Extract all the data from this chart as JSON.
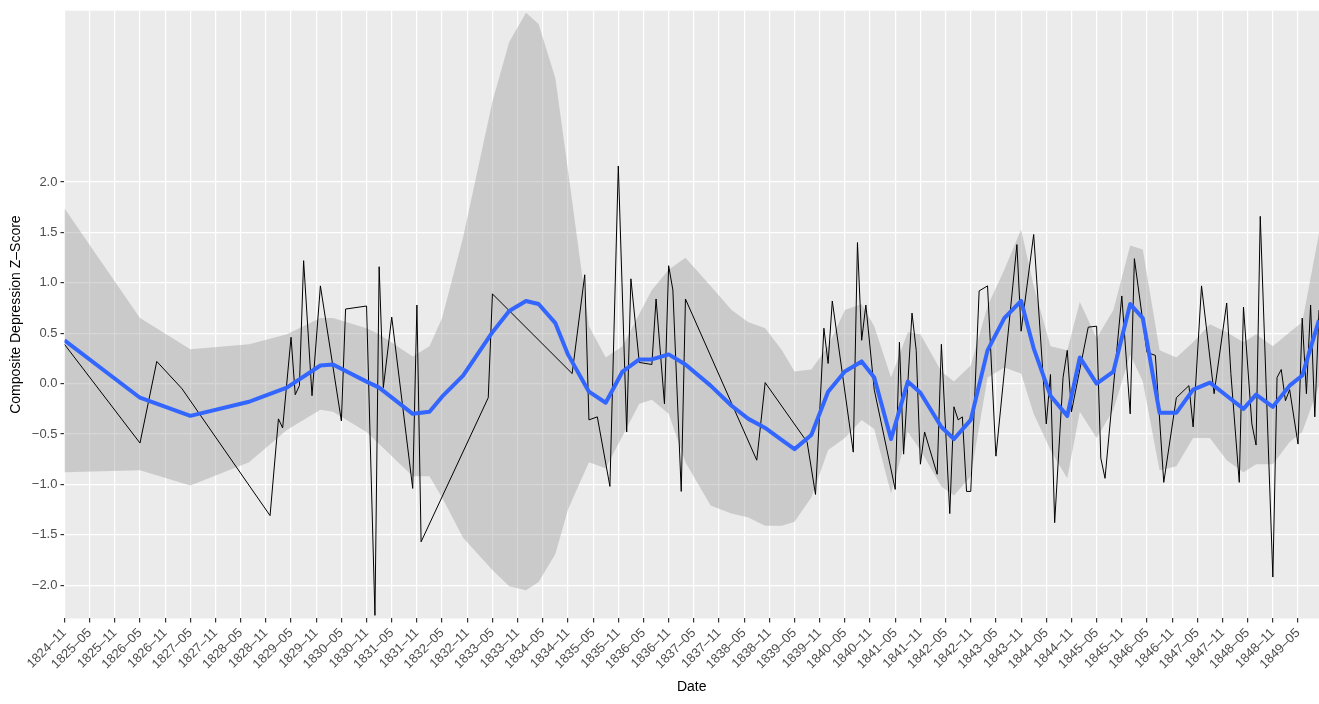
{
  "chart_data": {
    "type": "line",
    "xlabel": "Date",
    "ylabel": "Composite Depression Z–Score",
    "xlim": [
      "1824-11",
      "1849-10"
    ],
    "ylim": [
      -2.33,
      3.7
    ],
    "xticks": [
      {
        "value": "1824-11",
        "label": "1824–11"
      },
      {
        "value": "1825-05",
        "label": "1825–05"
      },
      {
        "value": "1825-11",
        "label": "1825–11"
      },
      {
        "value": "1826-05",
        "label": "1826–05"
      },
      {
        "value": "1826-11",
        "label": "1826–11"
      },
      {
        "value": "1827-05",
        "label": "1827–05"
      },
      {
        "value": "1827-11",
        "label": "1827–11"
      },
      {
        "value": "1828-05",
        "label": "1828–05"
      },
      {
        "value": "1828-11",
        "label": "1828–11"
      },
      {
        "value": "1829-05",
        "label": "1829–05"
      },
      {
        "value": "1829-11",
        "label": "1829–11"
      },
      {
        "value": "1830-05",
        "label": "1830–05"
      },
      {
        "value": "1830-11",
        "label": "1830–11"
      },
      {
        "value": "1831-05",
        "label": "1831–05"
      },
      {
        "value": "1831-11",
        "label": "1831–11"
      },
      {
        "value": "1832-05",
        "label": "1832–05"
      },
      {
        "value": "1832-11",
        "label": "1832–11"
      },
      {
        "value": "1833-05",
        "label": "1833–05"
      },
      {
        "value": "1833-11",
        "label": "1833–11"
      },
      {
        "value": "1834-05",
        "label": "1834–05"
      },
      {
        "value": "1834-11",
        "label": "1834–11"
      },
      {
        "value": "1835-05",
        "label": "1835–05"
      },
      {
        "value": "1835-11",
        "label": "1835–11"
      },
      {
        "value": "1836-05",
        "label": "1836–05"
      },
      {
        "value": "1836-11",
        "label": "1836–11"
      },
      {
        "value": "1837-05",
        "label": "1837–05"
      },
      {
        "value": "1837-11",
        "label": "1837–11"
      },
      {
        "value": "1838-05",
        "label": "1838–05"
      },
      {
        "value": "1838-11",
        "label": "1838–11"
      },
      {
        "value": "1839-05",
        "label": "1839–05"
      },
      {
        "value": "1839-11",
        "label": "1839–11"
      },
      {
        "value": "1840-05",
        "label": "1840–05"
      },
      {
        "value": "1840-11",
        "label": "1840–11"
      },
      {
        "value": "1841-05",
        "label": "1841–05"
      },
      {
        "value": "1841-11",
        "label": "1841–11"
      },
      {
        "value": "1842-05",
        "label": "1842–05"
      },
      {
        "value": "1842-11",
        "label": "1842–11"
      },
      {
        "value": "1843-05",
        "label": "1843–05"
      },
      {
        "value": "1843-11",
        "label": "1843–11"
      },
      {
        "value": "1844-05",
        "label": "1844–05"
      },
      {
        "value": "1844-11",
        "label": "1844–11"
      },
      {
        "value": "1845-05",
        "label": "1845–05"
      },
      {
        "value": "1845-11",
        "label": "1845–11"
      },
      {
        "value": "1846-05",
        "label": "1846–05"
      },
      {
        "value": "1846-11",
        "label": "1846–11"
      },
      {
        "value": "1847-05",
        "label": "1847–05"
      },
      {
        "value": "1847-11",
        "label": "1847–11"
      },
      {
        "value": "1848-05",
        "label": "1848–05"
      },
      {
        "value": "1848-11",
        "label": "1848–11"
      },
      {
        "value": "1849-05",
        "label": "1849–05"
      }
    ],
    "yticks": [
      {
        "value": -2,
        "label": "−2.0"
      },
      {
        "value": -1.5,
        "label": "−1.5"
      },
      {
        "value": -1,
        "label": "−1.0"
      },
      {
        "value": -0.5,
        "label": "−0.5"
      },
      {
        "value": 0,
        "label": "0.0"
      },
      0.5,
      {
        "value": 1,
        "label": "1.0"
      },
      1.5,
      {
        "value": 2,
        "label": "2.0"
      }
    ],
    "grid": true,
    "legend": false,
    "marker": "none",
    "series": [
      {
        "color": "#000000",
        "x": [
          "1824-11",
          "1826-05",
          "1826-09",
          "1827-03",
          "1828-12",
          "1829-02",
          "1829-03",
          "1829-05",
          "1829-06",
          "1829-07",
          "1829-08",
          "1829-10",
          "1829-12",
          "1830-05",
          "1830-06",
          "1830-11",
          "1831-01",
          "1831-02",
          "1831-03",
          "1831-05",
          "1831-10",
          "1831-11",
          "1831-12",
          "1833-04",
          "1833-05",
          "1834-12",
          "1835-03",
          "1835-04",
          "1835-06",
          "1835-09",
          "1835-11",
          "1836-01",
          "1836-02",
          "1836-04",
          "1836-07",
          "1836-08",
          "1836-10",
          "1836-11",
          "1836-12",
          "1837-02",
          "1837-03",
          "1838-08",
          "1838-10",
          "1839-08",
          "1839-10",
          "1839-12",
          "1840-01",
          "1840-02",
          "1840-07",
          "1840-08",
          "1840-09",
          "1840-10",
          "1840-12",
          "1841-05",
          "1841-06",
          "1841-07",
          "1841-09",
          "1841-10",
          "1841-11",
          "1841-12",
          "1842-03",
          "1842-04",
          "1842-06",
          "1842-07",
          "1842-08",
          "1842-09",
          "1842-10",
          "1842-11",
          "1843-01",
          "1843-03",
          "1843-05",
          "1843-10",
          "1843-11",
          "1844-02",
          "1844-05",
          "1844-06",
          "1844-07",
          "1844-09",
          "1844-10",
          "1844-11",
          "1845-03",
          "1845-05",
          "1845-06",
          "1845-07",
          "1845-11",
          "1846-01",
          "1846-02",
          "1846-05",
          "1846-07",
          "1846-09",
          "1846-12",
          "1847-03",
          "1847-04",
          "1847-06",
          "1847-09",
          "1847-12",
          "1848-01",
          "1848-03",
          "1848-04",
          "1848-06",
          "1848-07",
          "1848-08",
          "1848-11",
          "1848-12",
          "1849-01",
          "1849-02",
          "1849-03",
          "1849-05",
          "1849-06",
          "1849-07",
          "1849-08",
          "1849-09",
          "1849-10"
        ],
        "values": [
          0.39,
          -0.59,
          0.22,
          -0.05,
          -1.31,
          -0.35,
          -0.44,
          0.46,
          -0.11,
          -0.02,
          1.22,
          -0.12,
          0.97,
          -0.37,
          0.74,
          0.77,
          -2.3,
          1.16,
          -0.04,
          0.66,
          -1.04,
          0.78,
          -1.57,
          -0.14,
          0.89,
          0.1,
          1.08,
          -0.36,
          -0.33,
          -1.02,
          2.16,
          -0.48,
          1.04,
          0.21,
          0.19,
          0.84,
          -0.2,
          1.17,
          0.93,
          -1.07,
          0.84,
          -0.76,
          0.01,
          -0.58,
          -1.1,
          0.55,
          0.2,
          0.82,
          -0.68,
          1.4,
          0.43,
          0.78,
          -0.06,
          -1.05,
          0.41,
          -0.7,
          0.7,
          0.33,
          -0.8,
          -0.48,
          -0.9,
          0.39,
          -1.29,
          -0.23,
          -0.36,
          -0.33,
          -1.07,
          -1.07,
          0.92,
          0.97,
          -0.72,
          1.38,
          0.52,
          1.48,
          -0.4,
          0.09,
          -1.38,
          0.06,
          0.33,
          -0.28,
          0.56,
          0.57,
          -0.74,
          -0.94,
          0.87,
          -0.3,
          1.24,
          0.31,
          0.28,
          -0.98,
          -0.14,
          -0.02,
          -0.43,
          0.97,
          -0.1,
          0.8,
          0.1,
          -0.98,
          0.76,
          -0.4,
          -0.61,
          1.66,
          -1.92,
          0.06,
          0.14,
          -0.17,
          -0.06,
          -0.6,
          0.65,
          -0.1,
          0.78,
          -0.33,
          0.73
        ]
      },
      {
        "color": "#3366ff",
        "x": [
          "1824-11",
          "1826-05",
          "1827-05",
          "1828-07",
          "1829-04",
          "1829-12",
          "1830-03",
          "1830-11",
          "1831-02",
          "1831-10",
          "1832-02",
          "1832-05",
          "1832-10",
          "1833-05",
          "1833-09",
          "1834-01",
          "1834-04",
          "1834-08",
          "1834-11",
          "1835-04",
          "1835-08",
          "1835-12",
          "1836-04",
          "1836-07",
          "1836-11",
          "1837-03",
          "1837-09",
          "1838-02",
          "1838-06",
          "1838-10",
          "1839-02",
          "1839-05",
          "1839-09",
          "1840-01",
          "1840-05",
          "1840-09",
          "1840-12",
          "1841-04",
          "1841-08",
          "1841-11",
          "1842-04",
          "1842-07",
          "1842-11",
          "1843-03",
          "1843-07",
          "1843-11",
          "1844-02",
          "1844-06",
          "1844-10",
          "1845-01",
          "1845-05",
          "1845-09",
          "1846-01",
          "1846-04",
          "1846-08",
          "1846-12",
          "1847-04",
          "1847-08",
          "1847-12",
          "1848-04",
          "1848-07",
          "1848-11",
          "1849-03",
          "1849-06",
          "1849-10"
        ],
        "values": [
          0.43,
          -0.14,
          -0.32,
          -0.18,
          -0.04,
          0.18,
          0.19,
          0.02,
          -0.04,
          -0.3,
          -0.28,
          -0.13,
          0.08,
          0.51,
          0.72,
          0.82,
          0.79,
          0.6,
          0.29,
          -0.08,
          -0.19,
          0.12,
          0.24,
          0.24,
          0.29,
          0.19,
          -0.02,
          -0.22,
          -0.35,
          -0.44,
          -0.56,
          -0.65,
          -0.51,
          -0.08,
          0.12,
          0.22,
          0.06,
          -0.55,
          0.02,
          -0.09,
          -0.43,
          -0.55,
          -0.36,
          0.33,
          0.65,
          0.82,
          0.35,
          -0.12,
          -0.32,
          0.26,
          0.0,
          0.12,
          0.79,
          0.65,
          -0.29,
          -0.29,
          -0.06,
          0.01,
          -0.12,
          -0.25,
          -0.11,
          -0.23,
          -0.02,
          0.08,
          0.63
        ],
        "upper": [
          1.74,
          0.65,
          0.34,
          0.39,
          0.49,
          0.65,
          0.65,
          0.55,
          0.49,
          0.27,
          0.37,
          0.65,
          1.45,
          2.8,
          3.39,
          3.68,
          3.57,
          3.03,
          2.12,
          0.57,
          0.26,
          0.37,
          0.69,
          0.93,
          1.13,
          1.25,
          0.97,
          0.73,
          0.61,
          0.55,
          0.33,
          0.12,
          0.14,
          0.37,
          0.73,
          0.79,
          0.57,
          0.06,
          0.51,
          0.49,
          0.12,
          0.02,
          0.18,
          0.77,
          1.13,
          1.53,
          0.97,
          0.37,
          0.33,
          0.81,
          0.45,
          0.73,
          1.37,
          1.33,
          0.33,
          0.26,
          0.41,
          0.59,
          0.51,
          0.41,
          0.49,
          0.37,
          0.51,
          0.61,
          1.49
        ],
        "lower": [
          -0.88,
          -0.86,
          -1.01,
          -0.78,
          -0.46,
          -0.26,
          -0.28,
          -0.48,
          -0.6,
          -0.92,
          -0.92,
          -1.13,
          -1.53,
          -1.85,
          -2.01,
          -2.05,
          -1.97,
          -1.69,
          -1.25,
          -0.78,
          -0.84,
          -0.52,
          -0.2,
          -0.16,
          -0.3,
          -0.78,
          -1.21,
          -1.29,
          -1.33,
          -1.41,
          -1.41,
          -1.37,
          -1.13,
          -0.66,
          -0.54,
          -0.36,
          -0.45,
          -1.09,
          -0.48,
          -0.66,
          -1.02,
          -1.11,
          -0.92,
          0.06,
          0.16,
          0.1,
          -0.3,
          -0.66,
          -0.94,
          -0.28,
          -0.54,
          -0.26,
          0.29,
          0.02,
          -0.86,
          -0.82,
          -0.54,
          -0.54,
          -0.76,
          -0.88,
          -0.8,
          -0.8,
          -0.58,
          -0.48,
          -0.02
        ]
      }
    ]
  }
}
